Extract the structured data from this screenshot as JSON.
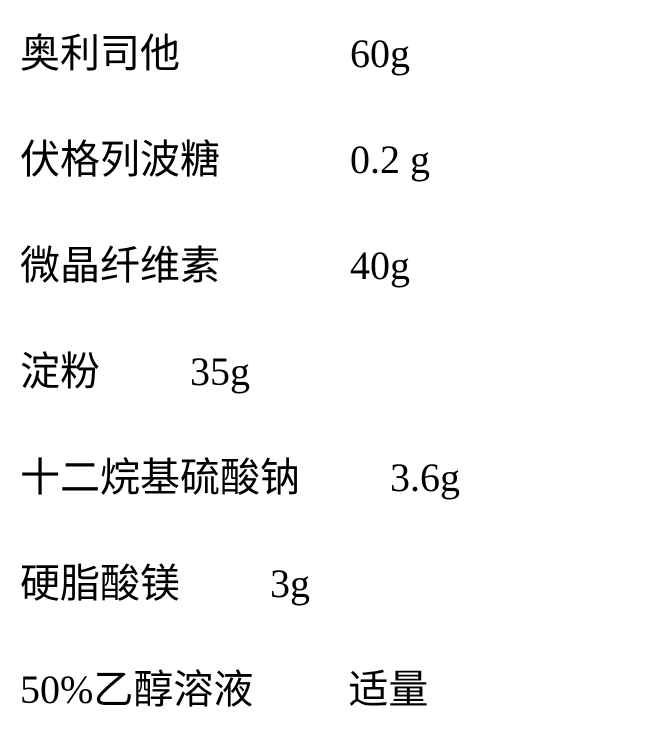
{
  "ingredients": [
    {
      "name": "奥利司他",
      "amount": "60g"
    },
    {
      "name": "伏格列波糖",
      "amount": "0.2 g"
    },
    {
      "name": "微晶纤维素",
      "amount": "40g"
    },
    {
      "name": "淀粉",
      "amount": "35g"
    },
    {
      "name": "十二烷基硫酸钠",
      "amount": "3.6g"
    },
    {
      "name": "硬脂酸镁",
      "amount": "3g"
    },
    {
      "name": "50%乙醇溶液",
      "amount": "适量"
    }
  ],
  "style": {
    "font_size": 40,
    "text_color": "#000000",
    "background_color": "#ffffff",
    "row_spacing": 58,
    "gaps": [
      170,
      130,
      130,
      90,
      90,
      90,
      95
    ]
  }
}
